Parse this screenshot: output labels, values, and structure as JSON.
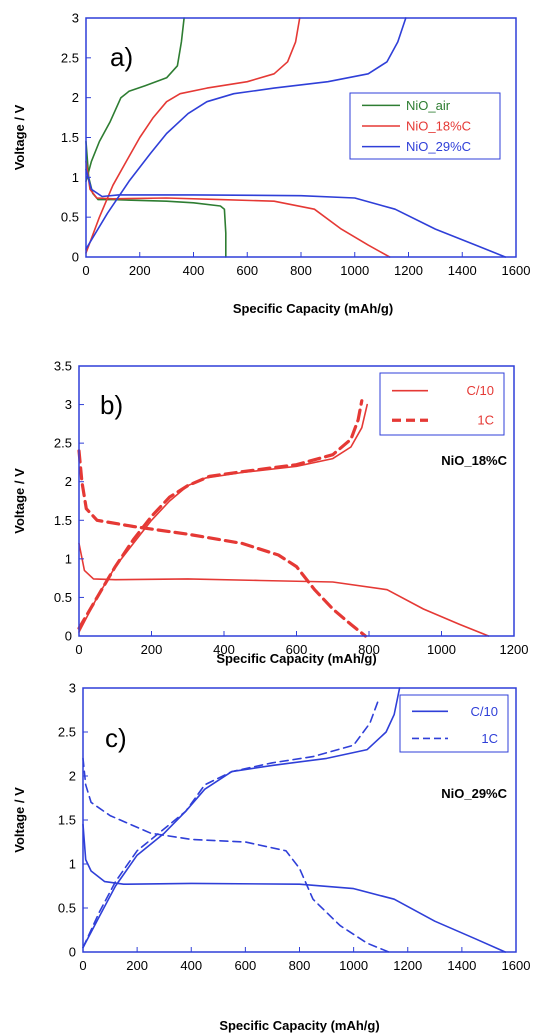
{
  "chart_data": [
    {
      "type": "line",
      "panel_label": "a)",
      "xlabel": "Specific Capacity (mAh/g)",
      "ylabel": "Voltage / V",
      "xlim": [
        0,
        1600
      ],
      "ylim": [
        0,
        3
      ],
      "xticks": [
        "0",
        "200",
        "400",
        "600",
        "800",
        "1000",
        "1200",
        "1400",
        "1600"
      ],
      "yticks": [
        "0",
        "0.5",
        "1",
        "1.5",
        "2",
        "2.5",
        "3"
      ],
      "legend_position": "right-middle",
      "series": [
        {
          "name": "NiO_air",
          "color": "#2e7d32",
          "dash": "solid",
          "discharge": [
            [
              0,
              1.45
            ],
            [
              10,
              1.0
            ],
            [
              25,
              0.8
            ],
            [
              45,
              0.72
            ],
            [
              100,
              0.72
            ],
            [
              200,
              0.71
            ],
            [
              300,
              0.7
            ],
            [
              400,
              0.68
            ],
            [
              500,
              0.64
            ],
            [
              515,
              0.6
            ],
            [
              520,
              0.3
            ],
            [
              520,
              0
            ]
          ],
          "charge": [
            [
              0,
              0.95
            ],
            [
              20,
              1.2
            ],
            [
              50,
              1.45
            ],
            [
              90,
              1.7
            ],
            [
              130,
              2.0
            ],
            [
              160,
              2.08
            ],
            [
              220,
              2.15
            ],
            [
              300,
              2.25
            ],
            [
              340,
              2.4
            ],
            [
              355,
              2.7
            ],
            [
              365,
              3.0
            ]
          ]
        },
        {
          "name": "NiO_18%C",
          "color": "#e53935",
          "dash": "solid",
          "discharge": [
            [
              0,
              1.2
            ],
            [
              15,
              0.85
            ],
            [
              40,
              0.74
            ],
            [
              100,
              0.73
            ],
            [
              300,
              0.74
            ],
            [
              500,
              0.72
            ],
            [
              700,
              0.7
            ],
            [
              850,
              0.6
            ],
            [
              950,
              0.35
            ],
            [
              1050,
              0.15
            ],
            [
              1130,
              0
            ]
          ],
          "charge": [
            [
              0,
              0.05
            ],
            [
              50,
              0.5
            ],
            [
              100,
              0.9
            ],
            [
              150,
              1.2
            ],
            [
              200,
              1.5
            ],
            [
              250,
              1.75
            ],
            [
              300,
              1.95
            ],
            [
              350,
              2.05
            ],
            [
              450,
              2.12
            ],
            [
              600,
              2.2
            ],
            [
              700,
              2.3
            ],
            [
              750,
              2.45
            ],
            [
              780,
              2.7
            ],
            [
              795,
              3.0
            ]
          ]
        },
        {
          "name": "NiO_29%C",
          "color": "#2f3fd8",
          "dash": "solid",
          "discharge": [
            [
              0,
              1.1
            ],
            [
              20,
              0.85
            ],
            [
              60,
              0.76
            ],
            [
              120,
              0.78
            ],
            [
              400,
              0.78
            ],
            [
              800,
              0.77
            ],
            [
              1000,
              0.74
            ],
            [
              1150,
              0.6
            ],
            [
              1300,
              0.35
            ],
            [
              1450,
              0.15
            ],
            [
              1560,
              0
            ]
          ],
          "charge": [
            [
              0,
              0.1
            ],
            [
              80,
              0.55
            ],
            [
              160,
              0.95
            ],
            [
              240,
              1.3
            ],
            [
              300,
              1.55
            ],
            [
              380,
              1.8
            ],
            [
              450,
              1.95
            ],
            [
              550,
              2.05
            ],
            [
              700,
              2.12
            ],
            [
              900,
              2.2
            ],
            [
              1050,
              2.3
            ],
            [
              1120,
              2.45
            ],
            [
              1160,
              2.7
            ],
            [
              1190,
              3.0
            ]
          ]
        }
      ]
    },
    {
      "type": "line",
      "panel_label": "b)",
      "annotation": "NiO_18%C",
      "xlabel": "Specific Capacity (mAh/g)",
      "ylabel": "Voltage / V",
      "xlim": [
        0,
        1200
      ],
      "ylim": [
        0,
        3.5
      ],
      "xticks": [
        "0",
        "200",
        "400",
        "600",
        "800",
        "1000",
        "1200"
      ],
      "yticks": [
        "0",
        "0.5",
        "1",
        "1.5",
        "2",
        "2.5",
        "3",
        "3.5"
      ],
      "legend_position": "top-right",
      "series": [
        {
          "name": "C/10",
          "color": "#e53935",
          "dash": "solid",
          "discharge": [
            [
              0,
              1.2
            ],
            [
              15,
              0.85
            ],
            [
              40,
              0.74
            ],
            [
              100,
              0.73
            ],
            [
              300,
              0.74
            ],
            [
              500,
              0.72
            ],
            [
              700,
              0.7
            ],
            [
              850,
              0.6
            ],
            [
              950,
              0.35
            ],
            [
              1050,
              0.15
            ],
            [
              1130,
              0
            ]
          ],
          "charge": [
            [
              0,
              0.05
            ],
            [
              50,
              0.5
            ],
            [
              100,
              0.9
            ],
            [
              150,
              1.2
            ],
            [
              200,
              1.5
            ],
            [
              250,
              1.75
            ],
            [
              300,
              1.95
            ],
            [
              350,
              2.05
            ],
            [
              450,
              2.12
            ],
            [
              600,
              2.2
            ],
            [
              700,
              2.3
            ],
            [
              750,
              2.45
            ],
            [
              780,
              2.7
            ],
            [
              795,
              3.0
            ]
          ]
        },
        {
          "name": "1C",
          "color": "#e53935",
          "dash": "dashed",
          "discharge": [
            [
              0,
              2.4
            ],
            [
              8,
              2.0
            ],
            [
              20,
              1.65
            ],
            [
              50,
              1.5
            ],
            [
              150,
              1.42
            ],
            [
              300,
              1.32
            ],
            [
              450,
              1.2
            ],
            [
              550,
              1.05
            ],
            [
              600,
              0.9
            ],
            [
              650,
              0.6
            ],
            [
              700,
              0.35
            ],
            [
              750,
              0.15
            ],
            [
              790,
              0
            ]
          ],
          "charge": [
            [
              0,
              0.1
            ],
            [
              50,
              0.5
            ],
            [
              100,
              0.9
            ],
            [
              150,
              1.25
            ],
            [
              200,
              1.55
            ],
            [
              250,
              1.8
            ],
            [
              300,
              1.95
            ],
            [
              360,
              2.07
            ],
            [
              450,
              2.13
            ],
            [
              600,
              2.22
            ],
            [
              700,
              2.35
            ],
            [
              750,
              2.55
            ],
            [
              770,
              2.8
            ],
            [
              780,
              3.05
            ]
          ]
        }
      ]
    },
    {
      "type": "line",
      "panel_label": "c)",
      "annotation": "NiO_29%C",
      "xlabel": "Specific Capacity (mAh/g)",
      "ylabel": "Voltage / V",
      "xlim": [
        0,
        1600
      ],
      "ylim": [
        0,
        3
      ],
      "xticks": [
        "0",
        "200",
        "400",
        "600",
        "800",
        "1000",
        "1200",
        "1400",
        "1600"
      ],
      "yticks": [
        "0",
        "0.5",
        "1",
        "1.5",
        "2",
        "2.5",
        "3"
      ],
      "legend_position": "top-right",
      "series": [
        {
          "name": "C/10",
          "color": "#2f3fd8",
          "dash": "solid",
          "discharge": [
            [
              0,
              1.45
            ],
            [
              10,
              1.05
            ],
            [
              30,
              0.92
            ],
            [
              80,
              0.8
            ],
            [
              150,
              0.77
            ],
            [
              400,
              0.78
            ],
            [
              800,
              0.77
            ],
            [
              1000,
              0.72
            ],
            [
              1150,
              0.6
            ],
            [
              1300,
              0.35
            ],
            [
              1450,
              0.15
            ],
            [
              1560,
              0
            ]
          ],
          "charge": [
            [
              0,
              0.05
            ],
            [
              60,
              0.4
            ],
            [
              120,
              0.75
            ],
            [
              200,
              1.1
            ],
            [
              300,
              1.35
            ],
            [
              380,
              1.6
            ],
            [
              450,
              1.85
            ],
            [
              550,
              2.05
            ],
            [
              700,
              2.12
            ],
            [
              900,
              2.2
            ],
            [
              1050,
              2.3
            ],
            [
              1120,
              2.5
            ],
            [
              1150,
              2.7
            ],
            [
              1170,
              3.0
            ]
          ]
        },
        {
          "name": "1C",
          "color": "#2f3fd8",
          "dash": "dashed",
          "discharge": [
            [
              0,
              2.2
            ],
            [
              10,
              1.9
            ],
            [
              30,
              1.7
            ],
            [
              100,
              1.55
            ],
            [
              250,
              1.35
            ],
            [
              400,
              1.28
            ],
            [
              600,
              1.25
            ],
            [
              750,
              1.15
            ],
            [
              800,
              0.95
            ],
            [
              850,
              0.6
            ],
            [
              950,
              0.3
            ],
            [
              1050,
              0.1
            ],
            [
              1130,
              0
            ]
          ],
          "charge": [
            [
              0,
              0.05
            ],
            [
              60,
              0.45
            ],
            [
              120,
              0.8
            ],
            [
              200,
              1.15
            ],
            [
              280,
              1.35
            ],
            [
              380,
              1.6
            ],
            [
              450,
              1.9
            ],
            [
              550,
              2.05
            ],
            [
              700,
              2.15
            ],
            [
              850,
              2.22
            ],
            [
              1000,
              2.35
            ],
            [
              1060,
              2.6
            ],
            [
              1090,
              2.85
            ]
          ]
        }
      ]
    }
  ]
}
